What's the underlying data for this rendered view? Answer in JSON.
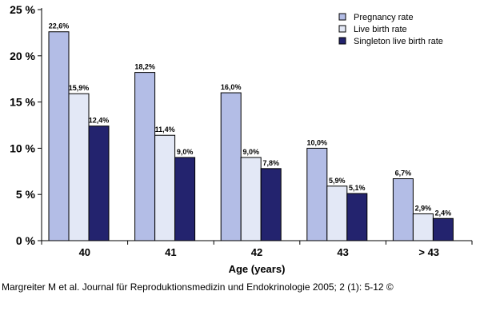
{
  "chart_data": {
    "type": "bar",
    "title": "",
    "xlabel": "Age (years)",
    "ylabel": "",
    "ylim": [
      0,
      25
    ],
    "yticks": [
      "0 %",
      "5 %",
      "10 %",
      "15 %",
      "20 %",
      "25 %"
    ],
    "grid": false,
    "legend_position": "top-right",
    "categories": [
      "40",
      "41",
      "42",
      "43",
      "> 43"
    ],
    "series": [
      {
        "name": "Pregnancy rate",
        "color": "#b3bde6",
        "values": [
          22.6,
          18.2,
          16.0,
          10.0,
          6.7
        ],
        "labels": [
          "22,6%",
          "18,2%",
          "16,0%",
          "10,0%",
          "6,7%"
        ]
      },
      {
        "name": "Live birth rate",
        "color": "#e3e8f6",
        "values": [
          15.9,
          11.4,
          9.0,
          5.9,
          2.9
        ],
        "labels": [
          "15,9%",
          "11,4%",
          "9,0%",
          "5,9%",
          "2,9%"
        ]
      },
      {
        "name": "Singleton live birth rate",
        "color": "#23236e",
        "values": [
          12.4,
          9.0,
          7.8,
          5.1,
          2.4
        ],
        "labels": [
          "12,4%",
          "9,0%",
          "7,8%",
          "5,1%",
          "2,4%"
        ]
      }
    ]
  },
  "caption": "Margreiter M et al. Journal für Reproduktionsmedizin und Endokrinologie 2005; 2 (1): 5-12 ©"
}
